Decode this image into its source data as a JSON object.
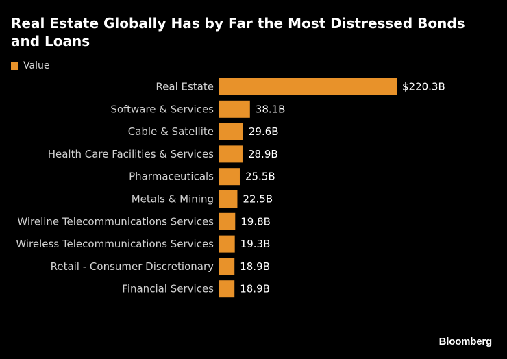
{
  "chart_data": {
    "type": "bar",
    "orientation": "horizontal",
    "title": "Real Estate Globally Has by Far the Most Distressed Bonds and Loans",
    "legend": [
      {
        "label": "Value",
        "color": "#e8922a"
      }
    ],
    "legend_position": "top-left",
    "categories": [
      "Real Estate",
      "Software & Services",
      "Cable & Satellite",
      "Health Care Facilities & Services",
      "Pharmaceuticals",
      "Metals & Mining",
      "Wireline Telecommunications Services",
      "Wireless Telecommunications Services",
      "Retail - Consumer Discretionary",
      "Financial Services"
    ],
    "values": [
      220.3,
      38.1,
      29.6,
      28.9,
      25.5,
      22.5,
      19.8,
      19.3,
      18.9,
      18.9
    ],
    "value_labels": [
      "$220.3B",
      "38.1B",
      "29.6B",
      "28.9B",
      "25.5B",
      "22.5B",
      "19.8B",
      "19.3B",
      "18.9B",
      "18.9B"
    ],
    "unit": "billion USD",
    "xlim": [
      0,
      220.3
    ],
    "xlabel": "",
    "ylabel": "",
    "grid": false
  },
  "colors": {
    "bar": "#e8922a",
    "background": "#000000",
    "category_text": "#d2d2d2",
    "value_text": "#ffffff"
  },
  "source": "Bloomberg"
}
